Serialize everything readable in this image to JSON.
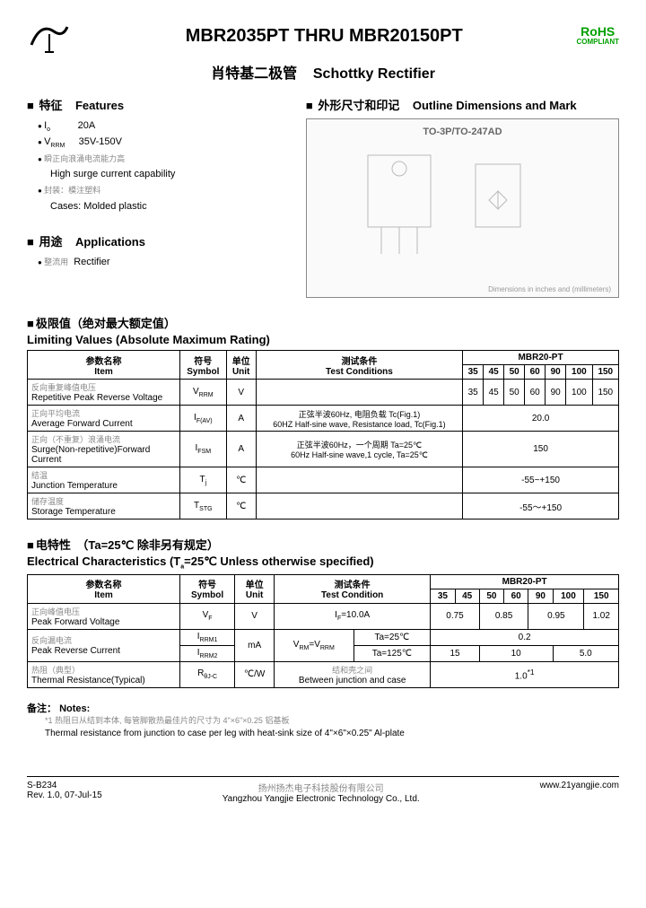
{
  "header": {
    "title": "MBR2035PT THRU MBR20150PT",
    "rohs": "RoHS",
    "rohs_sub": "COMPLIANT",
    "subtitle_cn": "肖特基二极管",
    "subtitle_en": "Schottky Rectifier"
  },
  "features": {
    "head_cn": "特征",
    "head_en": "Features",
    "io_label": "I",
    "io_sub": "o",
    "io_val": "20A",
    "vrrm_label": "V",
    "vrrm_sub": "RRM",
    "vrrm_val": "35V-150V",
    "surge_cn": "瞬正向浪涌电流能力高",
    "surge_en": "High surge current capability",
    "case_cn": "封装：模注塑料",
    "case_en": "Cases: Molded plastic"
  },
  "applications": {
    "head_cn": "用途",
    "head_en": "Applications",
    "item_cn": "整流用",
    "item_en": "Rectifier"
  },
  "outline": {
    "head_cn": "外形尺寸和印记",
    "head_en": "Outline Dimensions and Mark",
    "pkg": "TO-3P/TO-247AD",
    "dim_note": "Dimensions in inches and (millimeters)"
  },
  "limits": {
    "head_cn": "极限值（绝对最大额定值）",
    "head_en": "Limiting Values (Absolute Maximum Rating)",
    "cols": {
      "item_cn": "参数名称",
      "item_en": "Item",
      "sym_cn": "符号",
      "sym_en": "Symbol",
      "unit_cn": "单位",
      "unit_en": "Unit",
      "cond_cn": "测试条件",
      "cond_en": "Test Conditions",
      "group": "MBR20-PT",
      "sub": [
        "35",
        "45",
        "50",
        "60",
        "90",
        "100",
        "150"
      ]
    },
    "rows": [
      {
        "cn": "反向重复峰值电压",
        "en": "Repetitive Peak Reverse Voltage",
        "sym": "V",
        "sub": "RRM",
        "unit": "V",
        "cond": "",
        "vals": [
          "35",
          "45",
          "50",
          "60",
          "90",
          "100",
          "150"
        ]
      },
      {
        "cn": "正向平均电流",
        "en": "Average Forward Current",
        "sym": "I",
        "sub": "F(AV)",
        "unit": "A",
        "cond": "正弦半波60Hz, 电阻负载 Tc(Fig.1)\n60HZ Half-sine wave, Resistance load, Tc(Fig.1)",
        "span": "20.0"
      },
      {
        "cn": "正向（不重复）浪涌电流",
        "en": "Surge(Non-repetitive)Forward Current",
        "sym": "I",
        "sub": "FSM",
        "unit": "A",
        "cond": "正弦半波60Hz，一个周期 Ta=25℃\n60Hz Half-sine wave,1 cycle, Ta=25℃",
        "span": "150"
      },
      {
        "cn": "结温",
        "en": "Junction Temperature",
        "sym": "T",
        "sub": "j",
        "unit": "℃",
        "cond": "",
        "span": "-55~+150"
      },
      {
        "cn": "储存温度",
        "en": "Storage Temperature",
        "sym": "T",
        "sub": "STG",
        "unit": "℃",
        "cond": "",
        "span": "-55～+150"
      }
    ]
  },
  "elec": {
    "head_cn": "电特性　（Ta=25℃ 除非另有规定）",
    "head_en": "Electrical Characteristics (T",
    "head_en_sub": "a",
    "head_en_tail": "=25℃ Unless otherwise specified)",
    "cols": {
      "item_cn": "参数名称",
      "item_en": "Item",
      "sym_cn": "符号",
      "sym_en": "Symbol",
      "unit_cn": "单位",
      "unit_en": "Unit",
      "cond_cn": "测试条件",
      "cond_en": "Test Condition",
      "group": "MBR20-PT",
      "sub": [
        "35",
        "45",
        "50",
        "60",
        "90",
        "100",
        "150"
      ]
    },
    "vf": {
      "cn": "正向峰值电压",
      "en": "Peak Forward Voltage",
      "sym": "V",
      "sub": "F",
      "unit": "V",
      "cond": "IF=10.0A",
      "v1": "0.75",
      "v2": "0.85",
      "v3": "0.95",
      "v4": "1.02"
    },
    "ir": {
      "cn": "反向漏电流",
      "en": "Peak Reverse Current",
      "sym1": "I",
      "sub1": "RRM1",
      "sym2": "I",
      "sub2": "RRM2",
      "unit": "mA",
      "cond_pre": "VRM=VRRM",
      "cond1": "Ta=25℃",
      "cond2": "Ta=125℃",
      "row1": "0.2",
      "row2a": "15",
      "row2b": "10",
      "row2c": "5.0"
    },
    "rth": {
      "cn": "热阻（典型）",
      "en": "Thermal Resistance(Typical)",
      "sym": "R",
      "sub": "θJ-C",
      "unit": "℃/W",
      "cond_cn": "结和壳之间",
      "cond_en": "Between junction and case",
      "val": "1.0"
    }
  },
  "notes": {
    "head_cn": "备注：",
    "head_en": "Notes:",
    "line_cn": "*1 热阻日从结到本体, 每管脚散热最佳片的尺寸为 4\"×6\"×0.25 铝基板",
    "line_en": "Thermal resistance from junction to case per leg with heat-sink size of 4\"×6\"×0.25\" Al-plate"
  },
  "footer": {
    "left1": "S-B234",
    "left2": "Rev. 1.0, 07-Jul-15",
    "center_cn": "扬州扬杰电子科技股份有限公司",
    "center_en": "Yangzhou Yangjie Electronic Technology Co., Ltd.",
    "right": "www.21yangjie.com"
  },
  "colors": {
    "rohs": "#00a000",
    "border": "#000000",
    "faint": "#888888"
  }
}
